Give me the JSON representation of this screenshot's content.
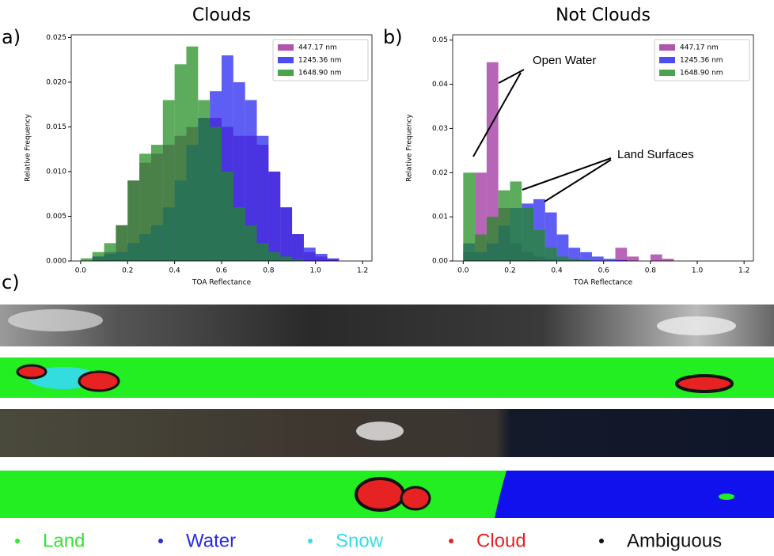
{
  "chart_data": [
    {
      "type": "histogram",
      "title": "Clouds",
      "panel_label": "a)",
      "xlabel": "TOA Reflectance",
      "ylabel": "Relative Frequency",
      "bins": [
        0,
        0.05,
        0.1,
        0.15,
        0.2,
        0.25,
        0.3,
        0.35,
        0.4,
        0.45,
        0.5,
        0.55,
        0.6,
        0.65,
        0.7,
        0.75,
        0.8,
        0.85,
        0.9,
        0.95,
        1.0,
        1.05,
        1.1,
        1.15
      ],
      "series": [
        {
          "name": "447.17 nm",
          "color": "#9b2a9b",
          "values": [
            0,
            0.0005,
            0.001,
            0.004,
            0.009,
            0.011,
            0.012,
            0.013,
            0.014,
            0.015,
            0.016,
            0.016,
            0.015,
            0.014,
            0.014,
            0.013,
            0.01,
            0.006,
            0.003,
            0.001,
            0.0005,
            0.0002,
            0
          ]
        },
        {
          "name": "1245.36 nm",
          "color": "#2020f0",
          "values": [
            0,
            0.0005,
            0.0008,
            0.001,
            0.002,
            0.003,
            0.004,
            0.006,
            0.009,
            0.013,
            0.016,
            0.019,
            0.023,
            0.02,
            0.018,
            0.014,
            0.01,
            0.006,
            0.003,
            0.0015,
            0.0008,
            0.0003,
            0
          ]
        },
        {
          "name": "1648.90 nm",
          "color": "#1e8c1e",
          "values": [
            0.0003,
            0.001,
            0.002,
            0.004,
            0.009,
            0.012,
            0.013,
            0.018,
            0.022,
            0.024,
            0.018,
            0.015,
            0.01,
            0.006,
            0.004,
            0.002,
            0.001,
            0.0005,
            0.0002,
            0,
            0,
            0,
            0
          ]
        }
      ],
      "xlim": [
        -0.04,
        1.24
      ],
      "xticks": [
        {
          "value": 0,
          "label": "0.0"
        },
        0.2,
        0.4,
        0.6,
        0.8,
        {
          "value": 1,
          "label": "1.0"
        },
        1.2
      ],
      "ylim": [
        0,
        0.0253
      ],
      "yticks": [
        {
          "value": 0,
          "label": "0.000"
        },
        0.005,
        {
          "value": 0.01,
          "label": "0.010"
        },
        0.015,
        {
          "value": 0.02,
          "label": "0.020"
        },
        0.025
      ],
      "legend": "upper right"
    },
    {
      "type": "histogram",
      "title": "Not Clouds",
      "panel_label": "b)",
      "xlabel": "TOA Reflectance",
      "ylabel": "Relative Frequency",
      "bins": [
        0,
        0.05,
        0.1,
        0.15,
        0.2,
        0.25,
        0.3,
        0.35,
        0.4,
        0.45,
        0.5,
        0.55,
        0.6,
        0.65,
        0.7,
        0.75,
        0.8,
        0.85,
        0.9,
        0.95,
        1.0,
        1.05,
        1.1,
        1.15
      ],
      "series": [
        {
          "name": "447.17 nm",
          "color": "#9b2a9b",
          "values": [
            0.002,
            0.02,
            0.045,
            0.012,
            0.004,
            0.002,
            0.001,
            0.0005,
            0,
            0,
            0,
            0,
            0,
            0.003,
            0.001,
            0,
            0.0015,
            0.0005,
            0,
            0,
            0,
            0,
            0
          ]
        },
        {
          "name": "1245.36 nm",
          "color": "#2020f0",
          "values": [
            0.004,
            0.002,
            0.004,
            0.008,
            0.012,
            0.013,
            0.014,
            0.011,
            0.006,
            0.003,
            0.002,
            0.001,
            0.0005,
            0.0002,
            0,
            0,
            0,
            0,
            0,
            0,
            0,
            0,
            0
          ]
        },
        {
          "name": "1648.90 nm",
          "color": "#1e8c1e",
          "values": [
            0.02,
            0.006,
            0.01,
            0.016,
            0.018,
            0.012,
            0.007,
            0.003,
            0.001,
            0.0005,
            0.0002,
            0,
            0,
            0,
            0,
            0,
            0,
            0,
            0,
            0,
            0,
            0,
            0
          ]
        }
      ],
      "xlim": [
        -0.045,
        1.24
      ],
      "xticks": [
        {
          "value": 0,
          "label": "0.0"
        },
        0.2,
        0.4,
        0.6,
        0.8,
        {
          "value": 1,
          "label": "1.0"
        },
        1.2
      ],
      "ylim": [
        0,
        0.0512
      ],
      "yticks": [
        {
          "value": 0,
          "label": "0.00"
        },
        0.01,
        0.02,
        0.03,
        0.04,
        0.05
      ],
      "legend": "upper right",
      "annotations": [
        "Open Water",
        "Land Surfaces"
      ]
    }
  ],
  "panel_c": {
    "label": "c)"
  },
  "class_legend": [
    {
      "name": "Land",
      "color": "#33e633"
    },
    {
      "name": "Water",
      "color": "#2a2ae6"
    },
    {
      "name": "Snow",
      "color": "#33dde6"
    },
    {
      "name": "Cloud",
      "color": "#e62222"
    },
    {
      "name": "Ambiguous",
      "color": "#111111"
    }
  ]
}
